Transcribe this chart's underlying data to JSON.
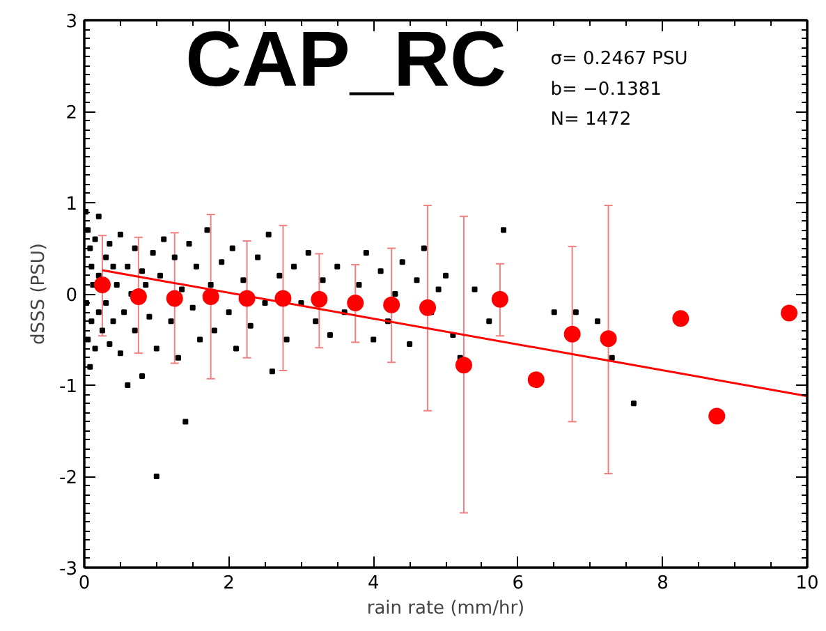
{
  "chart_data": {
    "type": "scatter",
    "xlabel": "rain rate (mm/hr)",
    "ylabel": "dSSS (PSU)",
    "xlim": [
      0,
      10
    ],
    "ylim": [
      -3,
      3
    ],
    "xticks": [
      0,
      2,
      4,
      6,
      8,
      10
    ],
    "yticks": [
      -3,
      -2,
      -1,
      0,
      1,
      2,
      3
    ],
    "grid": false,
    "annotations": [
      "CAP_RC",
      "σ=  0.2467 PSU",
      "b=  −0.1381",
      "N=  1472"
    ],
    "series": [
      {
        "marker": "square",
        "color": "#000000",
        "x": [
          0.02,
          0.05,
          0.05,
          0.08,
          0.1,
          0.1,
          0.12,
          0.03,
          0.15,
          0.15,
          0.2,
          0.2,
          0.2,
          0.25,
          0.3,
          0.3,
          0.08,
          0.35,
          0.35,
          0.4,
          0.4,
          0.45,
          0.5,
          0.5,
          0.55,
          0.6,
          0.6,
          0.65,
          0.7,
          0.7,
          0.8,
          0.8,
          0.85,
          0.9,
          0.95,
          1.0,
          1.0,
          1.05,
          1.1,
          1.2,
          1.25,
          1.3,
          1.35,
          1.4,
          1.45,
          1.5,
          1.55,
          1.6,
          1.7,
          1.75,
          1.8,
          1.9,
          2.0,
          2.05,
          2.1,
          2.2,
          2.3,
          2.4,
          2.5,
          2.55,
          2.6,
          2.7,
          2.8,
          2.9,
          3.0,
          3.1,
          3.2,
          3.3,
          3.4,
          3.5,
          3.6,
          3.8,
          3.9,
          4.0,
          4.1,
          4.2,
          4.3,
          4.4,
          4.5,
          4.6,
          4.7,
          4.8,
          4.9,
          5.0,
          5.1,
          5.2,
          5.4,
          5.6,
          5.8,
          6.5,
          6.8,
          7.1,
          7.3,
          7.6
        ],
        "values": [
          0.9,
          0.7,
          -0.5,
          0.5,
          0.3,
          -0.3,
          0.1,
          -0.1,
          0.6,
          -0.6,
          0.85,
          0.2,
          -0.2,
          -0.4,
          0.4,
          -0.1,
          -0.8,
          0.55,
          -0.55,
          0.3,
          -0.3,
          0.1,
          0.65,
          -0.65,
          -0.2,
          0.3,
          -1.0,
          0.0,
          0.5,
          -0.4,
          0.25,
          -0.9,
          0.1,
          -0.25,
          0.45,
          -0.6,
          -2.0,
          0.2,
          0.6,
          -0.3,
          0.4,
          -0.7,
          0.05,
          -1.4,
          0.55,
          -0.15,
          0.3,
          -0.5,
          0.7,
          0.1,
          -0.4,
          0.35,
          -0.2,
          0.5,
          -0.6,
          0.15,
          -0.35,
          0.4,
          -0.1,
          0.65,
          -0.85,
          0.2,
          -0.5,
          0.3,
          -0.1,
          0.45,
          -0.3,
          0.15,
          -0.45,
          0.3,
          -0.2,
          0.1,
          0.45,
          -0.5,
          0.25,
          -0.3,
          0.0,
          0.35,
          -0.55,
          0.15,
          0.5,
          -0.2,
          0.05,
          0.2,
          -0.45,
          -0.7,
          0.05,
          -0.3,
          0.7,
          -0.2,
          -0.2,
          -0.3,
          -0.7,
          -1.2
        ]
      },
      {
        "type": "scatter",
        "marker": "circle",
        "color": "#ff0000",
        "x": [
          0.25,
          0.75,
          1.25,
          1.75,
          2.25,
          2.75,
          3.25,
          3.75,
          4.25,
          4.75,
          5.25,
          5.75,
          6.25,
          6.75,
          7.25,
          8.25,
          8.75,
          9.75
        ],
        "values": [
          0.1,
          -0.03,
          -0.05,
          -0.03,
          -0.05,
          -0.05,
          -0.06,
          -0.1,
          -0.12,
          -0.15,
          -0.78,
          -0.06,
          -0.94,
          -0.44,
          -0.49,
          -0.27,
          -1.34,
          -0.21
        ],
        "errors": [
          [
            -0.46,
            0.64
          ],
          [
            -0.65,
            0.62
          ],
          [
            -0.76,
            0.67
          ],
          [
            -0.93,
            0.87
          ],
          [
            -0.7,
            0.58
          ],
          [
            -0.84,
            0.75
          ],
          [
            -0.59,
            0.44
          ],
          [
            -0.53,
            0.32
          ],
          [
            -0.75,
            0.5
          ],
          [
            -1.28,
            0.97
          ],
          [
            -2.4,
            0.85
          ],
          [
            -0.46,
            0.33
          ],
          null,
          [
            -1.4,
            0.52
          ],
          [
            -1.97,
            0.97
          ],
          null,
          null,
          null
        ]
      },
      {
        "type": "line",
        "color": "#ff0000",
        "x": [
          0.25,
          10
        ],
        "values": [
          0.26,
          -1.12
        ]
      }
    ]
  }
}
